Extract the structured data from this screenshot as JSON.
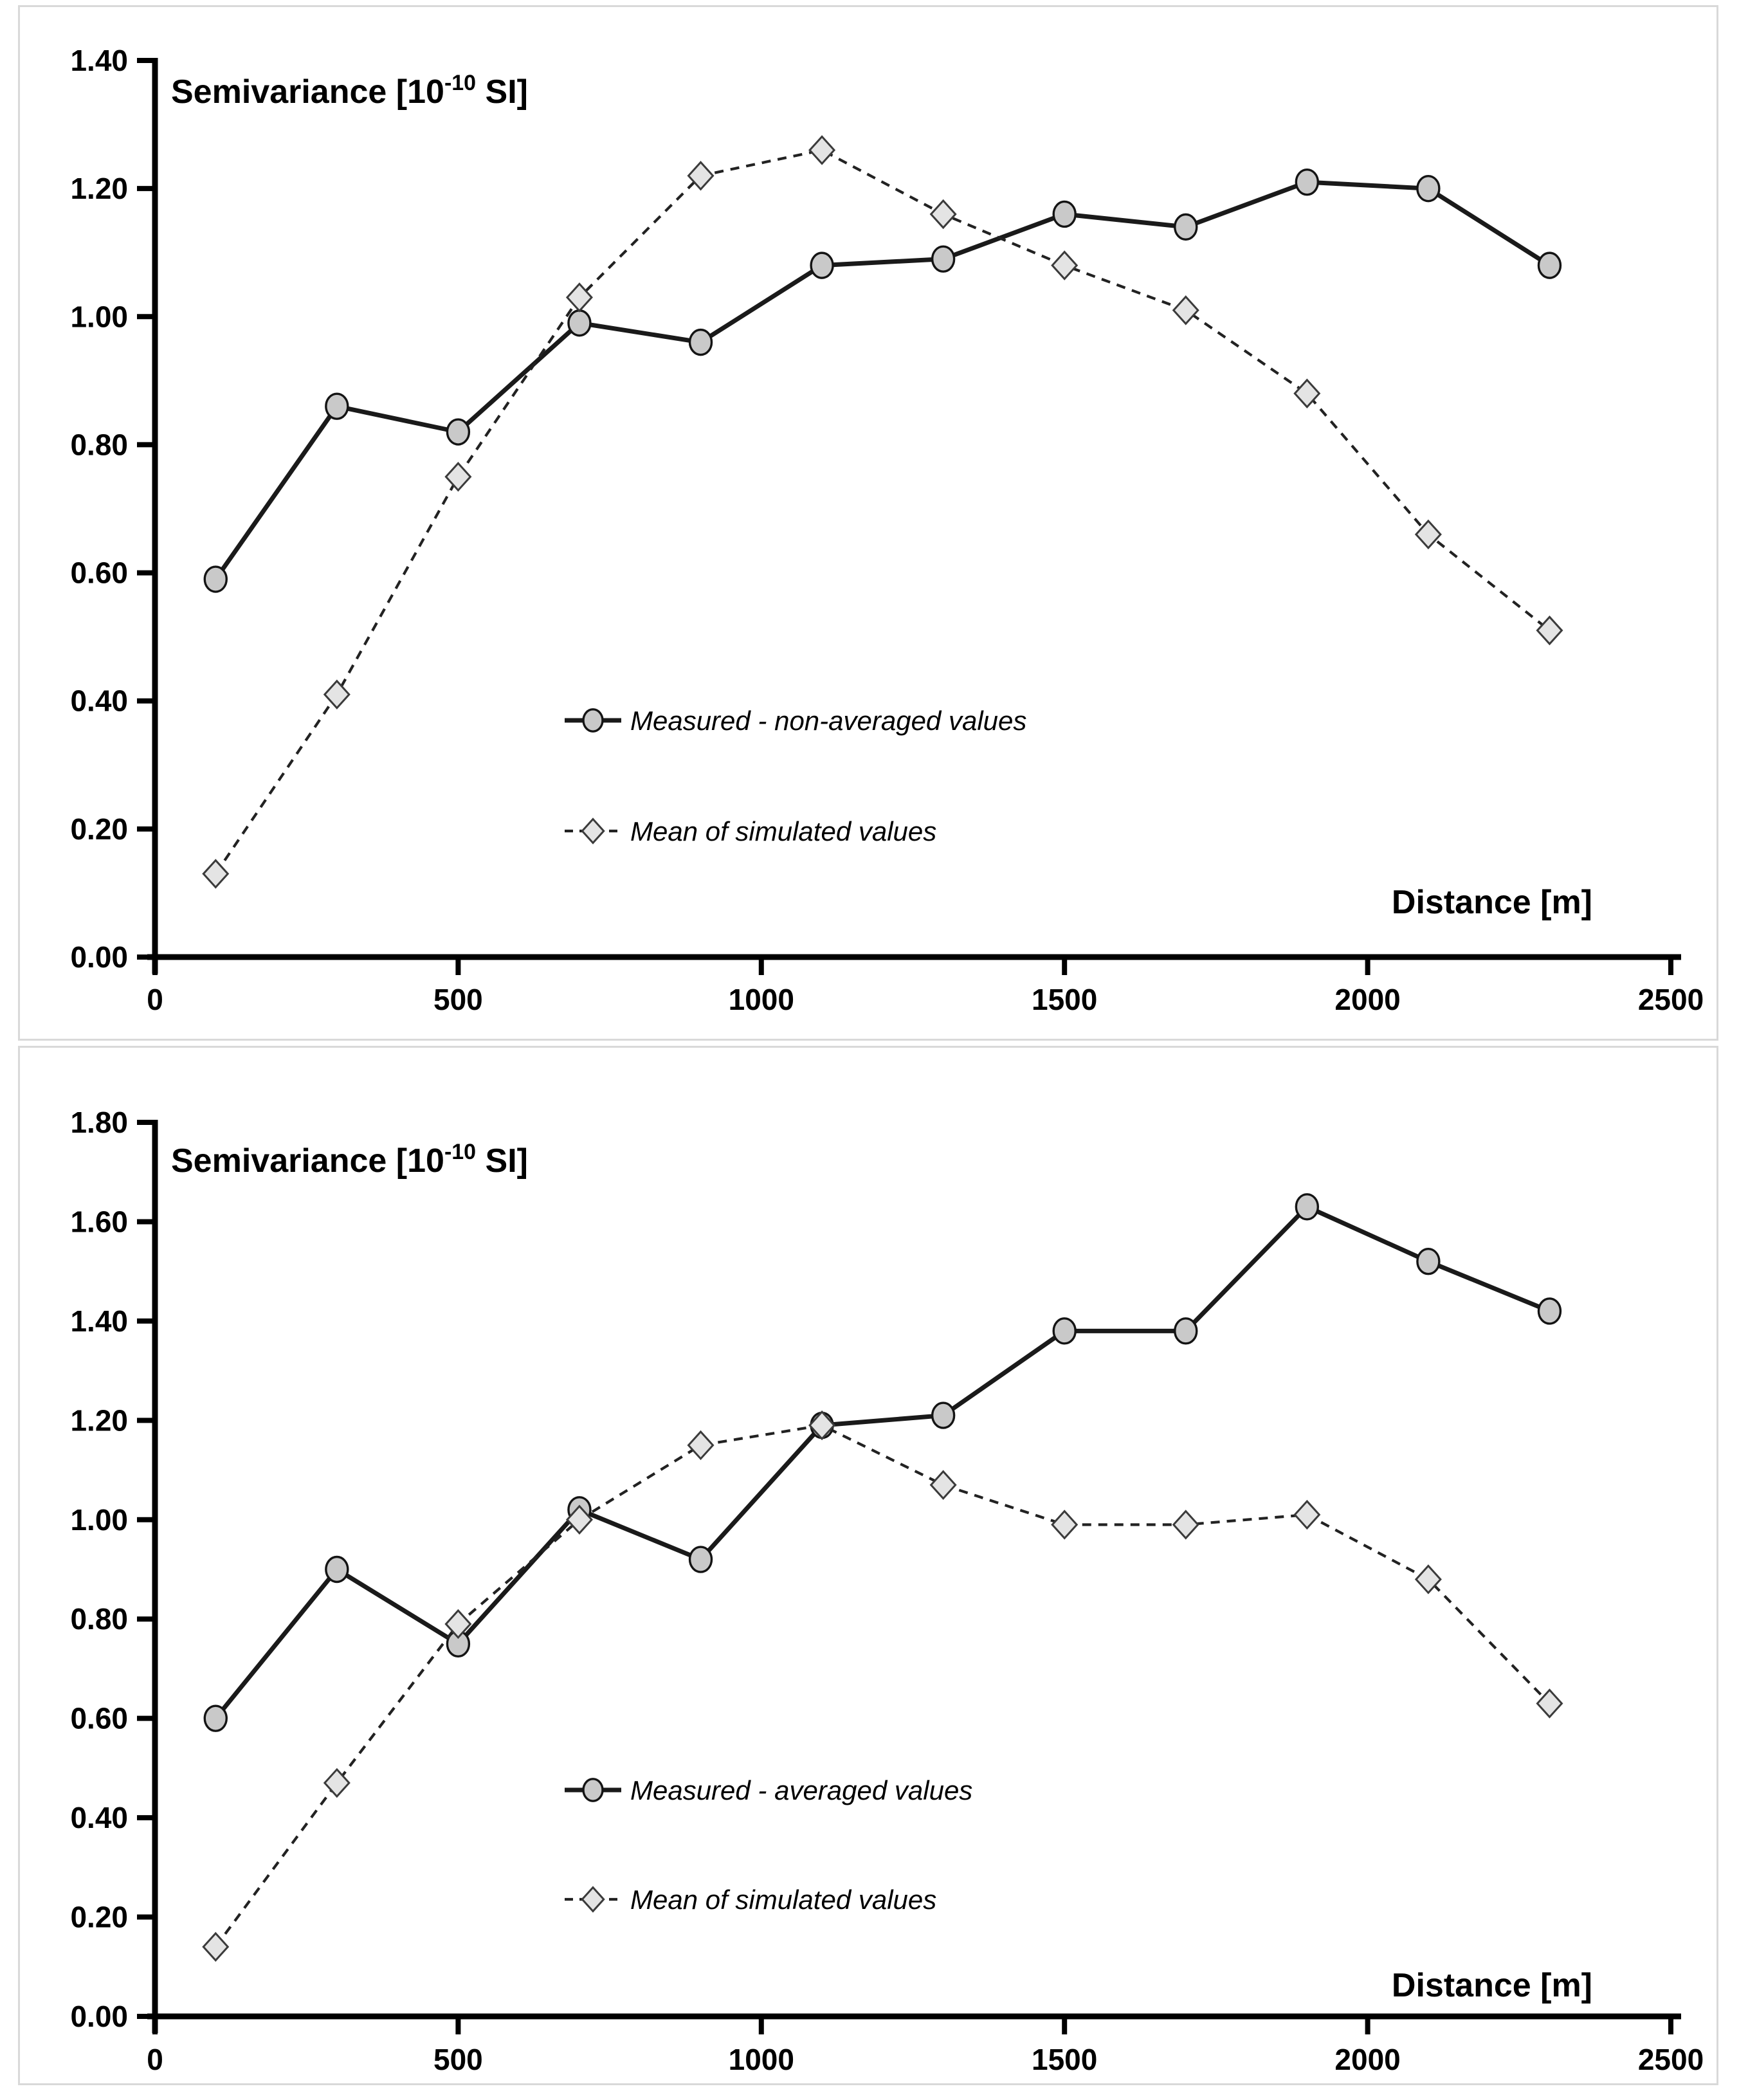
{
  "figure_title": "",
  "colors": {
    "background": "#ffffff",
    "panel_border": "#d9d9d9",
    "series_line": "#1a1a1a",
    "dashed_line": "#222222",
    "circle_fill": "#c9c9c9",
    "circle_stroke": "#141414",
    "diamond_fill": "#e4e4e4",
    "diamond_stroke": "#3b3b3b",
    "text": "#000000"
  },
  "chart_data": [
    {
      "type": "line",
      "title": "Semivariance [10^-10 SI]",
      "title_parts": {
        "prefix": "Semivariance [10",
        "exponent": "-10",
        "suffix": " SI]"
      },
      "xlabel": "Distance [m]",
      "ylabel": "Semivariance",
      "x": [
        100,
        300,
        500,
        700,
        900,
        1100,
        1300,
        1500,
        1700,
        1900,
        2100,
        2300
      ],
      "xlim": [
        0,
        2500
      ],
      "xticks": [
        0,
        500,
        1000,
        1500,
        2000,
        2500
      ],
      "ylim": [
        0,
        1.4
      ],
      "ytick_step": 0.2,
      "grid": false,
      "legend_position": "inside-center-left",
      "series": [
        {
          "name": "Measured - non-averaged values",
          "line": "solid",
          "marker": "circle",
          "values": [
            0.59,
            0.86,
            0.82,
            0.99,
            0.96,
            1.08,
            1.09,
            1.16,
            1.14,
            1.21,
            1.2,
            1.08
          ]
        },
        {
          "name": "Mean of simulated values",
          "line": "dashed",
          "marker": "diamond",
          "values": [
            0.13,
            0.41,
            0.75,
            1.03,
            1.22,
            1.26,
            1.16,
            1.08,
            1.01,
            0.88,
            0.66,
            0.51
          ]
        }
      ]
    },
    {
      "type": "line",
      "title": "Semivariance [10^-10 SI]",
      "title_parts": {
        "prefix": "Semivariance [10",
        "exponent": "-10",
        "suffix": " SI]"
      },
      "xlabel": "Distance [m]",
      "ylabel": "Semivariance",
      "x": [
        100,
        300,
        500,
        700,
        900,
        1100,
        1300,
        1500,
        1700,
        1900,
        2100,
        2300
      ],
      "xlim": [
        0,
        2500
      ],
      "xticks": [
        0,
        500,
        1000,
        1500,
        2000,
        2500
      ],
      "ylim": [
        0,
        1.8
      ],
      "ytick_step": 0.2,
      "grid": false,
      "legend_position": "inside-center-left",
      "series": [
        {
          "name": "Measured - averaged values",
          "line": "solid",
          "marker": "circle",
          "values": [
            0.6,
            0.9,
            0.75,
            1.02,
            0.92,
            1.19,
            1.21,
            1.38,
            1.38,
            1.63,
            1.52,
            1.42
          ]
        },
        {
          "name": "Mean of simulated values",
          "line": "dashed",
          "marker": "diamond",
          "values": [
            0.14,
            0.47,
            0.79,
            1.0,
            1.15,
            1.19,
            1.07,
            0.99,
            0.99,
            1.01,
            0.88,
            0.63
          ]
        }
      ]
    }
  ]
}
